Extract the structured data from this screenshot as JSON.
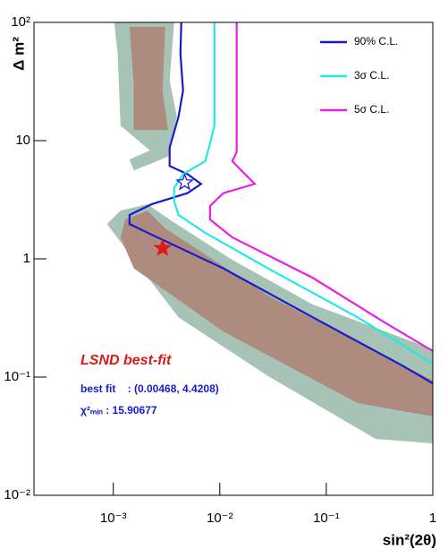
{
  "chart_data": {
    "type": "line",
    "ylabel": "Δ m²",
    "xlabel": "sin²(2θ)",
    "log_x": true,
    "log_y": true,
    "legend": "upper right",
    "xlim": [
      0.00018,
      1
    ],
    "ylim": [
      0.01,
      100
    ],
    "xticks": [
      {
        "value": 0.001,
        "label": "10⁻³"
      },
      {
        "value": 0.01,
        "label": "10⁻²"
      },
      {
        "value": 0.1,
        "label": "10⁻¹"
      },
      1
    ],
    "yticks": [
      {
        "value": 0.01,
        "label": "10⁻²"
      },
      {
        "value": 0.1,
        "label": "10⁻¹"
      },
      1,
      10,
      {
        "value": 100,
        "label": "10²"
      }
    ],
    "regions": [
      {
        "color": "#a6c3b6",
        "x": [
          0.00102,
          0.00373,
          0.00338,
          0.00395,
          0.00326,
          0.00156,
          0.00142,
          0.00221,
          0.00117,
          0.0011
        ],
        "y": [
          100,
          100,
          32.2,
          16,
          7.3,
          5.6,
          6.93,
          8.26,
          13.4,
          54.3
        ]
      },
      {
        "color": "#a6c3b6",
        "x": [
          0.00117,
          0.00209,
          0.00338,
          0.0131,
          0.0748,
          1,
          1,
          0.29,
          0.0284,
          0.0041,
          0.00117,
          0.000873
        ],
        "y": [
          2.56,
          2.9,
          2.15,
          0.98,
          0.411,
          0.172,
          0.0275,
          0.03,
          0.102,
          0.32,
          1.39,
          1.97
        ]
      },
      {
        "color": "#ad8b7e",
        "x": [
          0.00142,
          0.00307,
          0.0029,
          0.00326,
          0.00156,
          0.00156
        ],
        "y": [
          91.6,
          91.6,
          26.5,
          12.3,
          12.3,
          29.5
        ]
      },
      {
        "color": "#ad8b7e",
        "x": [
          0.00129,
          0.00209,
          0.00307,
          0.0284,
          1,
          1,
          0.197,
          0.0108,
          0.00156,
          0.00117
        ],
        "y": [
          2.15,
          2.56,
          1.81,
          0.489,
          0.0933,
          0.0464,
          0.0603,
          0.243,
          0.83,
          1.52
        ]
      }
    ],
    "series": [
      {
        "name": "90% C.L.",
        "color": "#1a1acc",
        "x": [
          0.00435,
          0.00427,
          0.00452,
          0.0041,
          0.00338,
          0.00338,
          0.00498,
          0.00667,
          0.00498,
          0.0023,
          0.00142,
          0.00142,
          0.0023,
          0.0108,
          0.0748,
          0.518,
          1
        ],
        "values": [
          100,
          54.3,
          26.5,
          16,
          8.7,
          6.1,
          5.2,
          4.3,
          3.6,
          2.9,
          2.35,
          1.97,
          1.6,
          0.83,
          0.32,
          0.125,
          0.0885
        ]
      },
      {
        "name": "3σ C.L.",
        "color": "#22e8e8",
        "x": [
          0.0089,
          0.0089,
          0.0081,
          0.0073,
          0.00452,
          0.00373,
          0.00373,
          0.0041,
          0.0073,
          0.0284,
          0.197,
          1
        ],
        "values": [
          100,
          13.4,
          9.5,
          6.7,
          5.2,
          4.0,
          3.05,
          2.35,
          1.66,
          0.83,
          0.32,
          0.13
        ]
      },
      {
        "name": "5σ C.L.",
        "color": "#e820e0",
        "x": [
          0.0144,
          0.0144,
          0.0131,
          0.0159,
          0.0213,
          0.0108,
          0.0081,
          0.0081,
          0.0131,
          0.0748,
          0.352,
          1
        ],
        "values": [
          100,
          8.0,
          6.7,
          5.6,
          4.3,
          3.6,
          2.8,
          2.15,
          1.52,
          0.69,
          0.29,
          0.166
        ]
      }
    ],
    "markers": [
      {
        "x": 0.00468,
        "y": 4.4208,
        "color": "#1a1acc",
        "filled": false
      },
      {
        "x": 0.0029,
        "y": 1.23,
        "color": "#e01818",
        "filled": true
      }
    ],
    "annotations": [
      {
        "text": "LSND best-fit",
        "color": "#e01818"
      },
      {
        "text": "best fit    : (0.00468, 4.4208)",
        "color": "#1a1acc"
      },
      {
        "text": "χ²ₘᵢₙ : 15.90677",
        "color": "#1a1acc"
      }
    ]
  }
}
